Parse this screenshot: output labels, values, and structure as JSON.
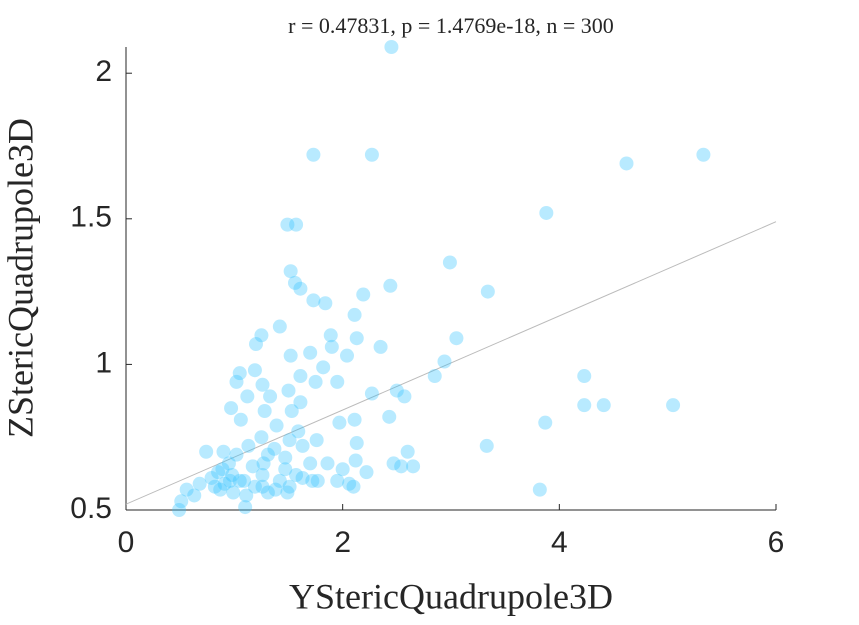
{
  "chart_data": {
    "type": "scatter",
    "title": "r = 0.47831, p = 1.4769e-18, n = 300",
    "x_label": "YStericQuadrupole3D",
    "y_label": "ZStericQuadrupole3D",
    "xlim": [
      0,
      6
    ],
    "ylim": [
      0.5,
      2.09
    ],
    "xticks": [
      0,
      2,
      4,
      6
    ],
    "yticks": [
      0.5,
      1,
      1.5,
      2
    ],
    "fit_line": {
      "x": [
        0,
        6
      ],
      "y": [
        0.52,
        1.49
      ],
      "color": "#bbbbbb"
    },
    "series": [
      {
        "color": "#33c3ff",
        "x": [
          2.45,
          1.73,
          2.27,
          4.62,
          5.33,
          3.88,
          1.49,
          1.57,
          2.99,
          3.34,
          2.44,
          1.52,
          1.56,
          1.61,
          2.19,
          1.73,
          1.84,
          2.11,
          1.42,
          3.05,
          1.25,
          1.89,
          2.13,
          2.35,
          1.2,
          1.9,
          2.94,
          1.52,
          1.7,
          2.04,
          4.23,
          2.85,
          1.19,
          1.05,
          1.82,
          1.61,
          1.26,
          1.02,
          1.75,
          1.95,
          2.27,
          2.57,
          2.5,
          4.23,
          4.41,
          5.05,
          1.12,
          1.33,
          1.5,
          0.97,
          1.28,
          1.53,
          2.11,
          2.43,
          1.06,
          1.39,
          1.97,
          3.87,
          1.59,
          1.76,
          3.33,
          1.25,
          1.51,
          2.13,
          0.74,
          2.6,
          1.63,
          1.31,
          1.02,
          1.47,
          2.12,
          2.47,
          2.65,
          2.54,
          3.82,
          1.86,
          1.7,
          0.95,
          1.17,
          2.0,
          0.85,
          2.22,
          1.26,
          1.57,
          0.79,
          1.05,
          0.96,
          1.77,
          1.95,
          1.42,
          2.06,
          0.68,
          0.91,
          1.19,
          1.26,
          1.51,
          2.1,
          0.82,
          1.38,
          1.63,
          0.56,
          0.63,
          1.11,
          0.51,
          1.1,
          0.49,
          0.87,
          0.99,
          1.31,
          1.49,
          1.72,
          1.09,
          0.98,
          0.89,
          1.47,
          1.27,
          1.37,
          1.13,
          0.9,
          1.61
        ],
        "values": [
          2.09,
          1.72,
          1.72,
          1.69,
          1.72,
          1.52,
          1.48,
          1.48,
          1.35,
          1.25,
          1.27,
          1.32,
          1.28,
          1.26,
          1.24,
          1.22,
          1.21,
          1.17,
          1.13,
          1.09,
          1.1,
          1.1,
          1.09,
          1.06,
          1.07,
          1.06,
          1.01,
          1.03,
          1.04,
          1.03,
          0.96,
          0.96,
          0.98,
          0.97,
          0.99,
          0.96,
          0.93,
          0.94,
          0.94,
          0.94,
          0.9,
          0.89,
          0.91,
          0.86,
          0.86,
          0.86,
          0.89,
          0.89,
          0.91,
          0.85,
          0.84,
          0.84,
          0.81,
          0.82,
          0.81,
          0.79,
          0.8,
          0.8,
          0.77,
          0.74,
          0.72,
          0.75,
          0.74,
          0.73,
          0.7,
          0.7,
          0.72,
          0.69,
          0.69,
          0.68,
          0.67,
          0.66,
          0.65,
          0.65,
          0.57,
          0.66,
          0.66,
          0.66,
          0.65,
          0.64,
          0.63,
          0.63,
          0.62,
          0.62,
          0.61,
          0.6,
          0.6,
          0.6,
          0.6,
          0.6,
          0.59,
          0.59,
          0.59,
          0.58,
          0.58,
          0.58,
          0.58,
          0.58,
          0.57,
          0.61,
          0.57,
          0.55,
          0.55,
          0.53,
          0.51,
          0.5,
          0.57,
          0.56,
          0.56,
          0.56,
          0.6,
          0.6,
          0.62,
          0.64,
          0.64,
          0.66,
          0.71,
          0.72,
          0.7,
          0.87
        ]
      }
    ]
  }
}
